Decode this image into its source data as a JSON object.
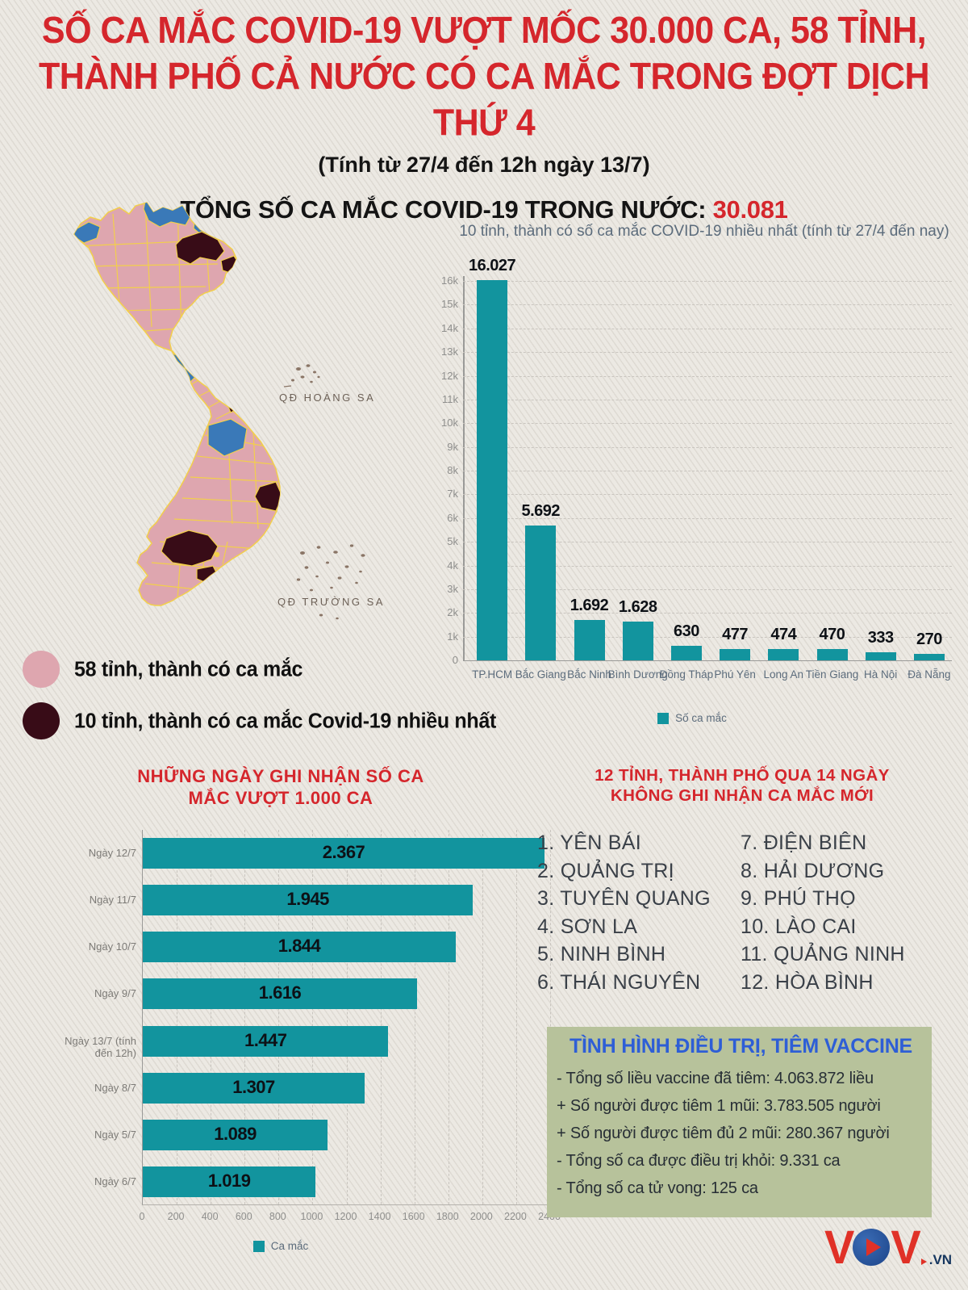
{
  "colors": {
    "accent_red": "#d5262c",
    "teal": "#12949e",
    "map_pink": "#dea6af",
    "map_blue": "#3a79b8",
    "map_dark": "#380c17",
    "map_border": "#f2cf4b",
    "green_bg": "#b7c29b",
    "blue_title": "#2e5ed6"
  },
  "header": {
    "title_line1": "SỐ CA MẮC COVID-19 VƯỢT MỐC 30.000 CA, 58 TỈNH,",
    "title_line2": "THÀNH PHỐ CẢ NƯỚC CÓ CA MẮC TRONG ĐỢT DỊCH THỨ 4",
    "subtitle": "(Tính từ 27/4 đến 12h ngày 13/7)",
    "total_label": "TỔNG SỐ CA MẮC COVID-19 TRONG NƯỚC:",
    "total_value": "30.081"
  },
  "map": {
    "label_hoang_sa": "QĐ HOÀNG SA",
    "label_truong_sa": "QĐ TRƯỜNG SA",
    "legend": [
      {
        "label": "58 tỉnh, thành có ca mắc",
        "color_key": "map_pink"
      },
      {
        "label": "10 tỉnh, thành có ca mắc Covid-19 nhiều nhất",
        "color_key": "map_dark"
      }
    ]
  },
  "chart_data": [
    {
      "type": "bar",
      "title": "10 tỉnh, thành có số ca mắc COVID-19 nhiều nhất (tính từ 27/4 đến nay)",
      "categories": [
        "TP.HCM",
        "Bắc Giang",
        "Bắc Ninh",
        "Bình Dương",
        "Đồng Tháp",
        "Phú Yên",
        "Long An",
        "Tiền Giang",
        "Hà Nội",
        "Đà Nẵng"
      ],
      "values": [
        16027,
        5692,
        1692,
        1628,
        630,
        477,
        474,
        470,
        333,
        270
      ],
      "value_labels": [
        "16.027",
        "5.692",
        "1.692",
        "1.628",
        "630",
        "477",
        "474",
        "470",
        "333",
        "270"
      ],
      "ylim": [
        0,
        16000
      ],
      "ytick_labels": [
        "16k",
        "15k",
        "14k",
        "13k",
        "12k",
        "11k",
        "10k",
        "9k",
        "8k",
        "7k",
        "6k",
        "5k",
        "4k",
        "3k",
        "2k",
        "1k",
        "0"
      ],
      "grid": "dashed horizontal",
      "legend": "Số ca mắc",
      "legend_position": "bottom"
    },
    {
      "type": "bar-horizontal",
      "title_line1": "NHỮNG NGÀY GHI NHẬN SỐ CA",
      "title_line2": "MẮC VƯỢT 1.000 CA",
      "categories": [
        "Ngày 12/7",
        "Ngày 11/7",
        "Ngày 10/7",
        "Ngày 9/7",
        "Ngày 13/7 (tính đến 12h)",
        "Ngày 8/7",
        "Ngày 5/7",
        "Ngày 6/7"
      ],
      "values": [
        2367,
        1945,
        1844,
        1616,
        1447,
        1307,
        1089,
        1019
      ],
      "value_labels": [
        "2.367",
        "1.945",
        "1.844",
        "1.616",
        "1.447",
        "1.307",
        "1.089",
        "1.019"
      ],
      "xlim": [
        0,
        2400
      ],
      "xtick_labels": [
        "0",
        "200",
        "400",
        "600",
        "800",
        "1000",
        "1200",
        "1400",
        "1600",
        "1800",
        "2000",
        "2200",
        "2400"
      ],
      "grid": "dashed vertical",
      "legend": "Ca mắc",
      "legend_position": "bottom"
    }
  ],
  "provinces_panel": {
    "title_line1": "12 TỈNH, THÀNH PHỐ QUA 14 NGÀY",
    "title_line2": "KHÔNG GHI NHẬN CA MẮC MỚI",
    "column1": [
      "1. YÊN BÁI",
      "2. QUẢNG TRỊ",
      "3. TUYÊN QUANG",
      "4. SƠN LA",
      "5. NINH BÌNH",
      "6. THÁI NGUYÊN"
    ],
    "column2": [
      "7. ĐIỆN BIÊN",
      "8. HẢI DƯƠNG",
      "9. PHÚ THỌ",
      "10. LÀO CAI",
      "11. QUẢNG NINH",
      "12. HÒA BÌNH"
    ]
  },
  "vaccine_panel": {
    "title": "TÌNH HÌNH ĐIỀU TRỊ, TIÊM VACCINE",
    "lines": [
      "- Tổng số liều vaccine đã tiêm: 4.063.872 liều",
      "+ Số người được tiêm 1 mũi: 3.783.505 người",
      "+ Số người được tiêm đủ 2 mũi: 280.367 người",
      "- Tổng số ca được điều trị khỏi: 9.331 ca",
      "- Tổng số ca tử vong: 125 ca"
    ]
  },
  "logo": {
    "letter1": "V",
    "letter2": "V",
    "suffix": ".VN"
  }
}
